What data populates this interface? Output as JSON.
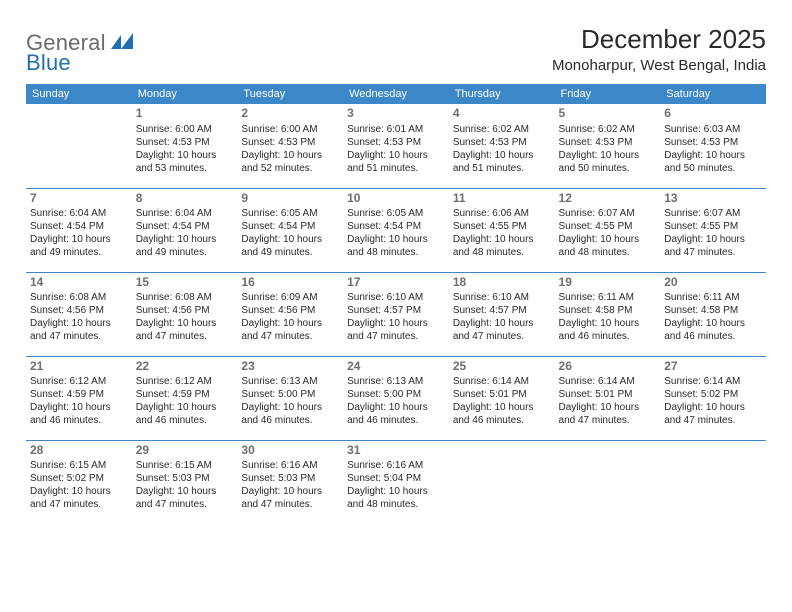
{
  "brand": {
    "general": "General",
    "blue": "Blue"
  },
  "title": {
    "month": "December 2025",
    "location": "Monoharpur, West Bengal, India"
  },
  "style": {
    "header_bg": "#3b87c8",
    "header_text": "#ffffff",
    "border_color": "#3b87c8",
    "daynum_color": "#6e6e6e",
    "body_text": "#2a2a2a",
    "logo_mark_fill": "#1f6fb2"
  },
  "weekdays": [
    "Sunday",
    "Monday",
    "Tuesday",
    "Wednesday",
    "Thursday",
    "Friday",
    "Saturday"
  ],
  "weeks": [
    [
      null,
      {
        "n": "1",
        "sunrise": "Sunrise: 6:00 AM",
        "sunset": "Sunset: 4:53 PM",
        "day1": "Daylight: 10 hours",
        "day2": "and 53 minutes."
      },
      {
        "n": "2",
        "sunrise": "Sunrise: 6:00 AM",
        "sunset": "Sunset: 4:53 PM",
        "day1": "Daylight: 10 hours",
        "day2": "and 52 minutes."
      },
      {
        "n": "3",
        "sunrise": "Sunrise: 6:01 AM",
        "sunset": "Sunset: 4:53 PM",
        "day1": "Daylight: 10 hours",
        "day2": "and 51 minutes."
      },
      {
        "n": "4",
        "sunrise": "Sunrise: 6:02 AM",
        "sunset": "Sunset: 4:53 PM",
        "day1": "Daylight: 10 hours",
        "day2": "and 51 minutes."
      },
      {
        "n": "5",
        "sunrise": "Sunrise: 6:02 AM",
        "sunset": "Sunset: 4:53 PM",
        "day1": "Daylight: 10 hours",
        "day2": "and 50 minutes."
      },
      {
        "n": "6",
        "sunrise": "Sunrise: 6:03 AM",
        "sunset": "Sunset: 4:53 PM",
        "day1": "Daylight: 10 hours",
        "day2": "and 50 minutes."
      }
    ],
    [
      {
        "n": "7",
        "sunrise": "Sunrise: 6:04 AM",
        "sunset": "Sunset: 4:54 PM",
        "day1": "Daylight: 10 hours",
        "day2": "and 49 minutes."
      },
      {
        "n": "8",
        "sunrise": "Sunrise: 6:04 AM",
        "sunset": "Sunset: 4:54 PM",
        "day1": "Daylight: 10 hours",
        "day2": "and 49 minutes."
      },
      {
        "n": "9",
        "sunrise": "Sunrise: 6:05 AM",
        "sunset": "Sunset: 4:54 PM",
        "day1": "Daylight: 10 hours",
        "day2": "and 49 minutes."
      },
      {
        "n": "10",
        "sunrise": "Sunrise: 6:05 AM",
        "sunset": "Sunset: 4:54 PM",
        "day1": "Daylight: 10 hours",
        "day2": "and 48 minutes."
      },
      {
        "n": "11",
        "sunrise": "Sunrise: 6:06 AM",
        "sunset": "Sunset: 4:55 PM",
        "day1": "Daylight: 10 hours",
        "day2": "and 48 minutes."
      },
      {
        "n": "12",
        "sunrise": "Sunrise: 6:07 AM",
        "sunset": "Sunset: 4:55 PM",
        "day1": "Daylight: 10 hours",
        "day2": "and 48 minutes."
      },
      {
        "n": "13",
        "sunrise": "Sunrise: 6:07 AM",
        "sunset": "Sunset: 4:55 PM",
        "day1": "Daylight: 10 hours",
        "day2": "and 47 minutes."
      }
    ],
    [
      {
        "n": "14",
        "sunrise": "Sunrise: 6:08 AM",
        "sunset": "Sunset: 4:56 PM",
        "day1": "Daylight: 10 hours",
        "day2": "and 47 minutes."
      },
      {
        "n": "15",
        "sunrise": "Sunrise: 6:08 AM",
        "sunset": "Sunset: 4:56 PM",
        "day1": "Daylight: 10 hours",
        "day2": "and 47 minutes."
      },
      {
        "n": "16",
        "sunrise": "Sunrise: 6:09 AM",
        "sunset": "Sunset: 4:56 PM",
        "day1": "Daylight: 10 hours",
        "day2": "and 47 minutes."
      },
      {
        "n": "17",
        "sunrise": "Sunrise: 6:10 AM",
        "sunset": "Sunset: 4:57 PM",
        "day1": "Daylight: 10 hours",
        "day2": "and 47 minutes."
      },
      {
        "n": "18",
        "sunrise": "Sunrise: 6:10 AM",
        "sunset": "Sunset: 4:57 PM",
        "day1": "Daylight: 10 hours",
        "day2": "and 47 minutes."
      },
      {
        "n": "19",
        "sunrise": "Sunrise: 6:11 AM",
        "sunset": "Sunset: 4:58 PM",
        "day1": "Daylight: 10 hours",
        "day2": "and 46 minutes."
      },
      {
        "n": "20",
        "sunrise": "Sunrise: 6:11 AM",
        "sunset": "Sunset: 4:58 PM",
        "day1": "Daylight: 10 hours",
        "day2": "and 46 minutes."
      }
    ],
    [
      {
        "n": "21",
        "sunrise": "Sunrise: 6:12 AM",
        "sunset": "Sunset: 4:59 PM",
        "day1": "Daylight: 10 hours",
        "day2": "and 46 minutes."
      },
      {
        "n": "22",
        "sunrise": "Sunrise: 6:12 AM",
        "sunset": "Sunset: 4:59 PM",
        "day1": "Daylight: 10 hours",
        "day2": "and 46 minutes."
      },
      {
        "n": "23",
        "sunrise": "Sunrise: 6:13 AM",
        "sunset": "Sunset: 5:00 PM",
        "day1": "Daylight: 10 hours",
        "day2": "and 46 minutes."
      },
      {
        "n": "24",
        "sunrise": "Sunrise: 6:13 AM",
        "sunset": "Sunset: 5:00 PM",
        "day1": "Daylight: 10 hours",
        "day2": "and 46 minutes."
      },
      {
        "n": "25",
        "sunrise": "Sunrise: 6:14 AM",
        "sunset": "Sunset: 5:01 PM",
        "day1": "Daylight: 10 hours",
        "day2": "and 46 minutes."
      },
      {
        "n": "26",
        "sunrise": "Sunrise: 6:14 AM",
        "sunset": "Sunset: 5:01 PM",
        "day1": "Daylight: 10 hours",
        "day2": "and 47 minutes."
      },
      {
        "n": "27",
        "sunrise": "Sunrise: 6:14 AM",
        "sunset": "Sunset: 5:02 PM",
        "day1": "Daylight: 10 hours",
        "day2": "and 47 minutes."
      }
    ],
    [
      {
        "n": "28",
        "sunrise": "Sunrise: 6:15 AM",
        "sunset": "Sunset: 5:02 PM",
        "day1": "Daylight: 10 hours",
        "day2": "and 47 minutes."
      },
      {
        "n": "29",
        "sunrise": "Sunrise: 6:15 AM",
        "sunset": "Sunset: 5:03 PM",
        "day1": "Daylight: 10 hours",
        "day2": "and 47 minutes."
      },
      {
        "n": "30",
        "sunrise": "Sunrise: 6:16 AM",
        "sunset": "Sunset: 5:03 PM",
        "day1": "Daylight: 10 hours",
        "day2": "and 47 minutes."
      },
      {
        "n": "31",
        "sunrise": "Sunrise: 6:16 AM",
        "sunset": "Sunset: 5:04 PM",
        "day1": "Daylight: 10 hours",
        "day2": "and 48 minutes."
      },
      null,
      null,
      null
    ]
  ]
}
